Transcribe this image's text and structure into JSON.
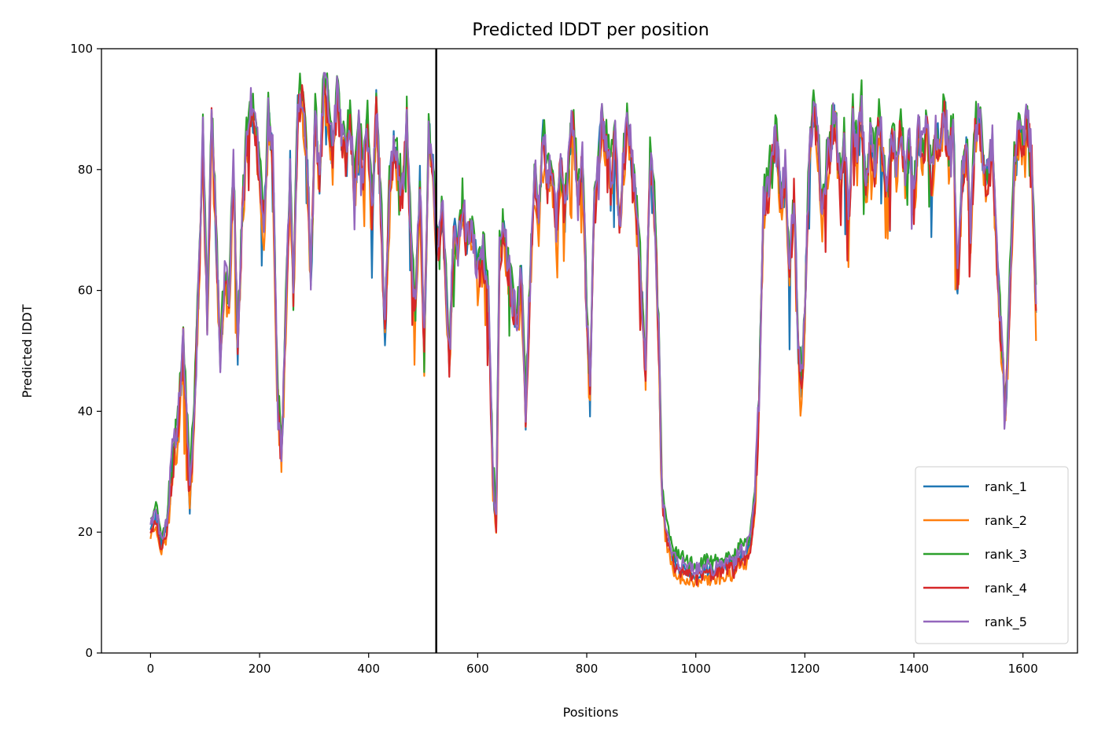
{
  "chart_data": {
    "type": "line",
    "title": "Predicted lDDT per position",
    "xlabel": "Positions",
    "ylabel": "Predicted lDDT",
    "xlim": [
      -90,
      1700
    ],
    "ylim": [
      0,
      100
    ],
    "xticks": [
      0,
      200,
      400,
      600,
      800,
      1000,
      1200,
      1400,
      1600
    ],
    "yticks": [
      0,
      20,
      40,
      60,
      80,
      100
    ],
    "grid": false,
    "legend_position": "lower right",
    "boundary_line_x": 524,
    "colors": {
      "rank_1": "#1f77b4",
      "rank_2": "#ff7f0e",
      "rank_3": "#2ca02c",
      "rank_4": "#d62728",
      "rank_5": "#9467bd",
      "boundary": "#000000"
    },
    "base_profile": [
      [
        0,
        21
      ],
      [
        10,
        23
      ],
      [
        20,
        18
      ],
      [
        30,
        21
      ],
      [
        40,
        32
      ],
      [
        50,
        36
      ],
      [
        60,
        52
      ],
      [
        65,
        42
      ],
      [
        72,
        25
      ],
      [
        80,
        40
      ],
      [
        88,
        60
      ],
      [
        96,
        85
      ],
      [
        104,
        55
      ],
      [
        112,
        88
      ],
      [
        120,
        70
      ],
      [
        128,
        48
      ],
      [
        136,
        62
      ],
      [
        144,
        58
      ],
      [
        152,
        80
      ],
      [
        160,
        50
      ],
      [
        168,
        72
      ],
      [
        176,
        84
      ],
      [
        184,
        90
      ],
      [
        192,
        86
      ],
      [
        200,
        80
      ],
      [
        208,
        70
      ],
      [
        216,
        88
      ],
      [
        224,
        82
      ],
      [
        232,
        46
      ],
      [
        240,
        32
      ],
      [
        248,
        55
      ],
      [
        256,
        80
      ],
      [
        262,
        58
      ],
      [
        270,
        90
      ],
      [
        278,
        92
      ],
      [
        286,
        84
      ],
      [
        294,
        62
      ],
      [
        302,
        88
      ],
      [
        310,
        78
      ],
      [
        318,
        94
      ],
      [
        326,
        90
      ],
      [
        334,
        82
      ],
      [
        342,
        92
      ],
      [
        350,
        86
      ],
      [
        358,
        82
      ],
      [
        366,
        88
      ],
      [
        374,
        76
      ],
      [
        382,
        86
      ],
      [
        390,
        80
      ],
      [
        398,
        88
      ],
      [
        406,
        72
      ],
      [
        414,
        90
      ],
      [
        422,
        76
      ],
      [
        430,
        52
      ],
      [
        438,
        76
      ],
      [
        446,
        84
      ],
      [
        454,
        80
      ],
      [
        462,
        76
      ],
      [
        470,
        88
      ],
      [
        478,
        66
      ],
      [
        486,
        56
      ],
      [
        494,
        78
      ],
      [
        502,
        50
      ],
      [
        510,
        86
      ],
      [
        518,
        80
      ],
      [
        524,
        70
      ],
      [
        530,
        68
      ],
      [
        536,
        72
      ],
      [
        542,
        60
      ],
      [
        548,
        48
      ],
      [
        556,
        70
      ],
      [
        564,
        66
      ],
      [
        572,
        74
      ],
      [
        580,
        68
      ],
      [
        590,
        70
      ],
      [
        600,
        62
      ],
      [
        610,
        66
      ],
      [
        620,
        58
      ],
      [
        628,
        28
      ],
      [
        634,
        21
      ],
      [
        640,
        66
      ],
      [
        648,
        70
      ],
      [
        656,
        64
      ],
      [
        664,
        58
      ],
      [
        672,
        54
      ],
      [
        680,
        62
      ],
      [
        688,
        40
      ],
      [
        696,
        60
      ],
      [
        704,
        80
      ],
      [
        712,
        72
      ],
      [
        720,
        86
      ],
      [
        728,
        78
      ],
      [
        736,
        80
      ],
      [
        744,
        70
      ],
      [
        752,
        82
      ],
      [
        760,
        72
      ],
      [
        768,
        84
      ],
      [
        776,
        88
      ],
      [
        784,
        74
      ],
      [
        792,
        82
      ],
      [
        800,
        56
      ],
      [
        806,
        42
      ],
      [
        812,
        70
      ],
      [
        820,
        80
      ],
      [
        828,
        88
      ],
      [
        836,
        84
      ],
      [
        844,
        78
      ],
      [
        852,
        86
      ],
      [
        860,
        70
      ],
      [
        868,
        82
      ],
      [
        876,
        88
      ],
      [
        884,
        80
      ],
      [
        892,
        72
      ],
      [
        900,
        60
      ],
      [
        908,
        48
      ],
      [
        916,
        82
      ],
      [
        924,
        74
      ],
      [
        932,
        52
      ],
      [
        938,
        26
      ],
      [
        945,
        20
      ],
      [
        952,
        18
      ],
      [
        960,
        15
      ],
      [
        970,
        14
      ],
      [
        980,
        14
      ],
      [
        990,
        13
      ],
      [
        1000,
        13
      ],
      [
        1010,
        13
      ],
      [
        1020,
        14
      ],
      [
        1030,
        13
      ],
      [
        1040,
        14
      ],
      [
        1050,
        14
      ],
      [
        1060,
        15
      ],
      [
        1070,
        14
      ],
      [
        1080,
        16
      ],
      [
        1090,
        16
      ],
      [
        1100,
        18
      ],
      [
        1108,
        24
      ],
      [
        1116,
        42
      ],
      [
        1124,
        74
      ],
      [
        1132,
        76
      ],
      [
        1140,
        82
      ],
      [
        1148,
        86
      ],
      [
        1156,
        74
      ],
      [
        1164,
        80
      ],
      [
        1172,
        62
      ],
      [
        1180,
        76
      ],
      [
        1188,
        50
      ],
      [
        1194,
        44
      ],
      [
        1200,
        56
      ],
      [
        1208,
        82
      ],
      [
        1216,
        90
      ],
      [
        1224,
        84
      ],
      [
        1232,
        72
      ],
      [
        1240,
        80
      ],
      [
        1248,
        86
      ],
      [
        1256,
        88
      ],
      [
        1264,
        78
      ],
      [
        1272,
        84
      ],
      [
        1280,
        72
      ],
      [
        1288,
        88
      ],
      [
        1296,
        82
      ],
      [
        1304,
        90
      ],
      [
        1312,
        76
      ],
      [
        1320,
        86
      ],
      [
        1328,
        80
      ],
      [
        1336,
        88
      ],
      [
        1344,
        82
      ],
      [
        1352,
        76
      ],
      [
        1360,
        86
      ],
      [
        1368,
        80
      ],
      [
        1376,
        88
      ],
      [
        1384,
        78
      ],
      [
        1392,
        84
      ],
      [
        1400,
        74
      ],
      [
        1408,
        86
      ],
      [
        1416,
        82
      ],
      [
        1424,
        88
      ],
      [
        1432,
        78
      ],
      [
        1440,
        86
      ],
      [
        1448,
        84
      ],
      [
        1456,
        90
      ],
      [
        1464,
        82
      ],
      [
        1472,
        88
      ],
      [
        1480,
        60
      ],
      [
        1488,
        78
      ],
      [
        1496,
        84
      ],
      [
        1504,
        70
      ],
      [
        1512,
        86
      ],
      [
        1520,
        88
      ],
      [
        1528,
        80
      ],
      [
        1536,
        78
      ],
      [
        1544,
        84
      ],
      [
        1552,
        66
      ],
      [
        1560,
        52
      ],
      [
        1568,
        40
      ],
      [
        1576,
        60
      ],
      [
        1584,
        80
      ],
      [
        1592,
        86
      ],
      [
        1600,
        84
      ],
      [
        1608,
        88
      ],
      [
        1616,
        82
      ],
      [
        1624,
        56
      ]
    ],
    "series": [
      {
        "name": "rank_1",
        "offset": 0.0,
        "seed": 11
      },
      {
        "name": "rank_2",
        "offset": -1.5,
        "seed": 23
      },
      {
        "name": "rank_3",
        "offset": 1.8,
        "seed": 37
      },
      {
        "name": "rank_4",
        "offset": -0.6,
        "seed": 49
      },
      {
        "name": "rank_5",
        "offset": 0.8,
        "seed": 61
      }
    ]
  }
}
